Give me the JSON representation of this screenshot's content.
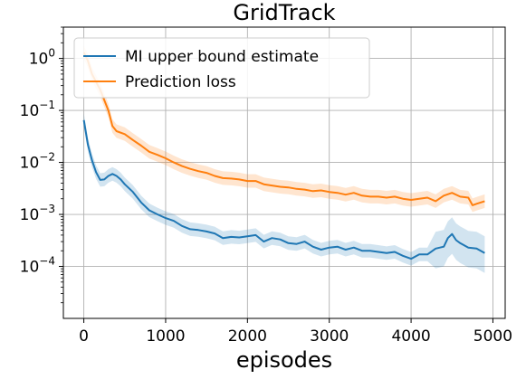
{
  "colors": {
    "series_1": "#1f77b4",
    "series_2": "#ff7f0e",
    "grid": "#b0b0b0",
    "axes": "#000000"
  },
  "chart_data": {
    "type": "line",
    "title": "GridTrack",
    "xlabel": "episodes",
    "ylabel": "",
    "xlim": [
      -250,
      5150
    ],
    "ylim": [
      1e-05,
      4
    ],
    "y_scale": "log",
    "grid": true,
    "legend_position": "upper-left",
    "x_ticks": [
      0,
      1000,
      2000,
      3000,
      4000,
      5000
    ],
    "x_tick_labels": [
      "0",
      "1000",
      "2000",
      "3000",
      "4000",
      "5000"
    ],
    "y_ticks": [
      0.0001,
      0.001,
      0.01,
      0.1,
      1
    ],
    "y_tick_labels": [
      {
        "base": "10",
        "exp": "−4"
      },
      {
        "base": "10",
        "exp": "−3"
      },
      {
        "base": "10",
        "exp": "−2"
      },
      {
        "base": "10",
        "exp": "−1"
      },
      {
        "base": "10",
        "exp": "0"
      }
    ],
    "series": [
      {
        "name": "MI upper bound estimate",
        "color": "#1f77b4",
        "shaded_band": true,
        "points": [
          [
            0,
            0.065
          ],
          [
            50,
            0.022
          ],
          [
            100,
            0.011
          ],
          [
            150,
            0.0065
          ],
          [
            200,
            0.0046
          ],
          [
            250,
            0.0047
          ],
          [
            300,
            0.0055
          ],
          [
            350,
            0.006
          ],
          [
            400,
            0.0055
          ],
          [
            450,
            0.0047
          ],
          [
            500,
            0.0038
          ],
          [
            600,
            0.0027
          ],
          [
            700,
            0.0017
          ],
          [
            800,
            0.0012
          ],
          [
            900,
            0.001
          ],
          [
            1000,
            0.00085
          ],
          [
            1100,
            0.00075
          ],
          [
            1200,
            0.0006
          ],
          [
            1300,
            0.00052
          ],
          [
            1400,
            0.0005
          ],
          [
            1500,
            0.00047
          ],
          [
            1600,
            0.00043
          ],
          [
            1700,
            0.00035
          ],
          [
            1800,
            0.00037
          ],
          [
            1900,
            0.00036
          ],
          [
            2000,
            0.00038
          ],
          [
            2100,
            0.0004
          ],
          [
            2200,
            0.0003
          ],
          [
            2300,
            0.00035
          ],
          [
            2400,
            0.00033
          ],
          [
            2500,
            0.00028
          ],
          [
            2600,
            0.00027
          ],
          [
            2700,
            0.0003
          ],
          [
            2800,
            0.00024
          ],
          [
            2900,
            0.00021
          ],
          [
            3000,
            0.00023
          ],
          [
            3100,
            0.00024
          ],
          [
            3200,
            0.00021
          ],
          [
            3300,
            0.00023
          ],
          [
            3400,
            0.0002
          ],
          [
            3500,
            0.0002
          ],
          [
            3600,
            0.00019
          ],
          [
            3700,
            0.00018
          ],
          [
            3800,
            0.00019
          ],
          [
            3900,
            0.00016
          ],
          [
            4000,
            0.00014
          ],
          [
            4100,
            0.00017
          ],
          [
            4200,
            0.00017
          ],
          [
            4300,
            0.00022
          ],
          [
            4400,
            0.00024
          ],
          [
            4450,
            0.00035
          ],
          [
            4500,
            0.00042
          ],
          [
            4550,
            0.00032
          ],
          [
            4600,
            0.00028
          ],
          [
            4700,
            0.00023
          ],
          [
            4800,
            0.00022
          ],
          [
            4900,
            0.00018
          ]
        ]
      },
      {
        "name": "Prediction loss",
        "color": "#ff7f0e",
        "shaded_band": true,
        "points": [
          [
            0,
            1.3
          ],
          [
            50,
            0.9
          ],
          [
            100,
            0.5
          ],
          [
            200,
            0.25
          ],
          [
            300,
            0.1
          ],
          [
            350,
            0.05
          ],
          [
            400,
            0.04
          ],
          [
            500,
            0.035
          ],
          [
            600,
            0.027
          ],
          [
            700,
            0.021
          ],
          [
            800,
            0.016
          ],
          [
            900,
            0.014
          ],
          [
            1000,
            0.012
          ],
          [
            1100,
            0.01
          ],
          [
            1200,
            0.0085
          ],
          [
            1300,
            0.0075
          ],
          [
            1400,
            0.0068
          ],
          [
            1500,
            0.0063
          ],
          [
            1600,
            0.0055
          ],
          [
            1700,
            0.005
          ],
          [
            1800,
            0.0049
          ],
          [
            1900,
            0.0047
          ],
          [
            2000,
            0.0044
          ],
          [
            2100,
            0.0044
          ],
          [
            2200,
            0.0038
          ],
          [
            2300,
            0.0036
          ],
          [
            2400,
            0.0034
          ],
          [
            2500,
            0.0033
          ],
          [
            2600,
            0.0031
          ],
          [
            2700,
            0.003
          ],
          [
            2800,
            0.0028
          ],
          [
            2900,
            0.0029
          ],
          [
            3000,
            0.0027
          ],
          [
            3100,
            0.0026
          ],
          [
            3200,
            0.0024
          ],
          [
            3300,
            0.0026
          ],
          [
            3400,
            0.0023
          ],
          [
            3500,
            0.0022
          ],
          [
            3600,
            0.0022
          ],
          [
            3700,
            0.0021
          ],
          [
            3800,
            0.0022
          ],
          [
            3900,
            0.002
          ],
          [
            4000,
            0.0019
          ],
          [
            4100,
            0.002
          ],
          [
            4200,
            0.0021
          ],
          [
            4300,
            0.0018
          ],
          [
            4400,
            0.0023
          ],
          [
            4500,
            0.0026
          ],
          [
            4600,
            0.0022
          ],
          [
            4700,
            0.0021
          ],
          [
            4750,
            0.0015
          ],
          [
            4800,
            0.0016
          ],
          [
            4900,
            0.0018
          ]
        ]
      }
    ]
  }
}
